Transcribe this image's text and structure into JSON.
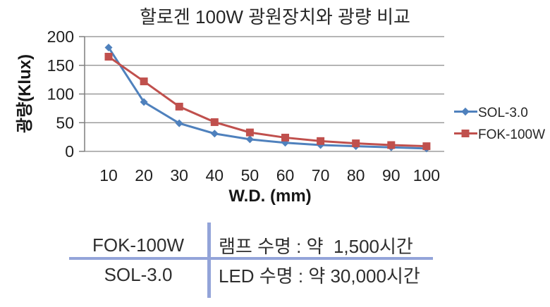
{
  "chart_data": {
    "type": "line",
    "title": "할로겐 100W 광원장치와 광량 비교",
    "xlabel": "W.D. (mm)",
    "ylabel": "광량(Klux)",
    "x": [
      10,
      20,
      30,
      40,
      50,
      60,
      70,
      80,
      90,
      100
    ],
    "series": [
      {
        "name": "SOL-3.0",
        "color": "#4F81BD",
        "marker": "diamond",
        "values": [
          181,
          86,
          49,
          31,
          21,
          15,
          11,
          9,
          7,
          5
        ]
      },
      {
        "name": "FOK-100W",
        "color": "#C0504D",
        "marker": "square",
        "values": [
          165,
          122,
          78,
          51,
          33,
          24,
          18,
          14,
          11,
          9
        ]
      }
    ],
    "ylim": [
      0,
      200
    ],
    "yticks": [
      0,
      50,
      100,
      150,
      200
    ],
    "grid": true,
    "grid_color": "#8A8A8A",
    "axis_color": "#7F7F7F",
    "tick_text_color": "#1F1F1F",
    "legend_position": "right"
  },
  "table": {
    "divider_color": "#93A4D9",
    "rows": [
      {
        "model": "FOK-100W",
        "lifetime": "램프 수명 : 약  1,500시간"
      },
      {
        "model": "SOL-3.0",
        "lifetime": "LED 수명 : 약 30,000시간"
      }
    ]
  }
}
